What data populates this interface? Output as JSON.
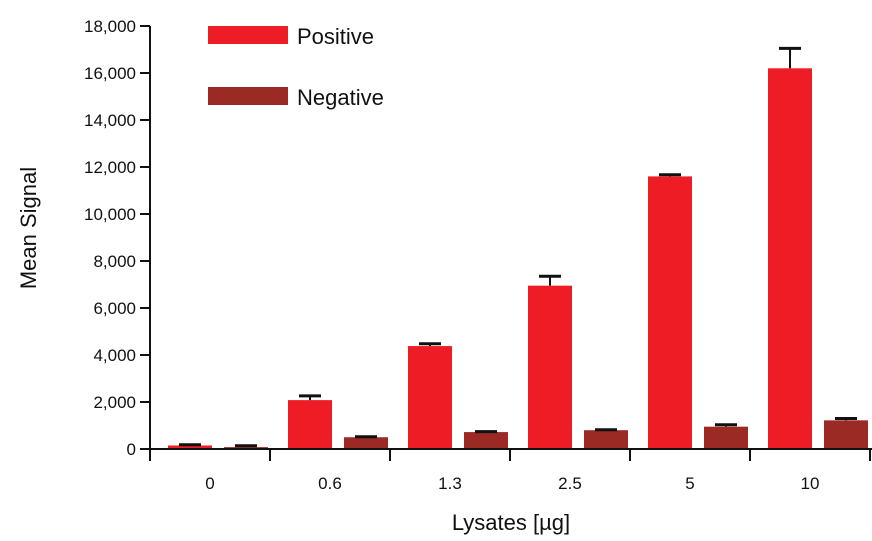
{
  "chart_data": {
    "type": "bar",
    "title": "",
    "xlabel": "Lysates [µg]",
    "ylabel": "Mean Signal",
    "categories": [
      "0",
      "0.6",
      "1.3",
      "2.5",
      "5",
      "10"
    ],
    "ylim": [
      0,
      18000
    ],
    "yticks": [
      0,
      2000,
      4000,
      6000,
      8000,
      10000,
      12000,
      14000,
      16000,
      18000
    ],
    "ytick_labels": [
      "0",
      "2,000",
      "4,000",
      "6,000",
      "8,000",
      "10,000",
      "12,000",
      "14,000",
      "16,000",
      "18,000"
    ],
    "legend_position": "top-left",
    "grid": false,
    "series": [
      {
        "name": "Positive",
        "color": "#ee1c25",
        "values": [
          150,
          2080,
          4380,
          6950,
          11600,
          16200
        ],
        "errors": [
          30,
          180,
          100,
          400,
          70,
          850
        ]
      },
      {
        "name": "Negative",
        "color": "#9b2a25",
        "values": [
          80,
          500,
          720,
          800,
          950,
          1220
        ],
        "errors": [
          60,
          20,
          20,
          20,
          80,
          80
        ]
      }
    ]
  }
}
